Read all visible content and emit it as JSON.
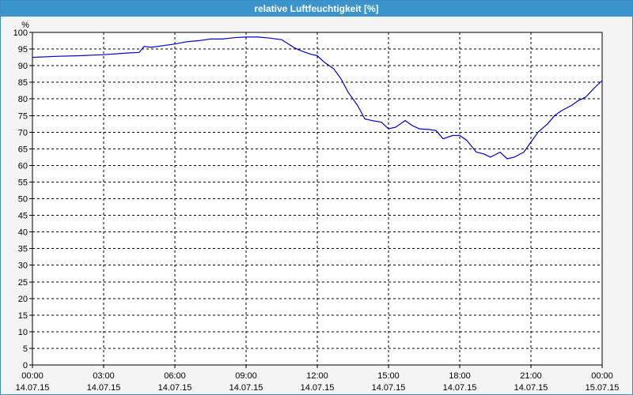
{
  "window": {
    "title": "relative Luftfeuchtigkeit [%]"
  },
  "chart_data": {
    "type": "line",
    "title": "relative Luftfeuchtigkeit [%]",
    "ylabel": "%",
    "ylim": [
      0,
      100
    ],
    "yticks": [
      0,
      5,
      10,
      15,
      20,
      25,
      30,
      35,
      40,
      45,
      50,
      55,
      60,
      65,
      70,
      75,
      80,
      85,
      90,
      95,
      100
    ],
    "xlim_hours": [
      0,
      24
    ],
    "xticks": [
      {
        "hour": 0,
        "time": "00:00",
        "date": "14.07.15"
      },
      {
        "hour": 3,
        "time": "03:00",
        "date": "14.07.15"
      },
      {
        "hour": 6,
        "time": "06:00",
        "date": "14.07.15"
      },
      {
        "hour": 9,
        "time": "09:00",
        "date": "14.07.15"
      },
      {
        "hour": 12,
        "time": "12:00",
        "date": "14.07.15"
      },
      {
        "hour": 15,
        "time": "15:00",
        "date": "14.07.15"
      },
      {
        "hour": 18,
        "time": "18:00",
        "date": "14.07.15"
      },
      {
        "hour": 21,
        "time": "21:00",
        "date": "14.07.15"
      },
      {
        "hour": 24,
        "time": "00:00",
        "date": "15.07.15"
      }
    ],
    "grid": true,
    "line_color": "#0000c8",
    "series": [
      {
        "x": [
          0,
          1,
          2,
          3,
          4,
          4.5,
          4.7,
          5,
          5.5,
          6,
          6.5,
          7,
          7.5,
          8,
          8.5,
          9,
          9.5,
          10,
          10.5,
          11,
          11.3,
          11.7,
          12,
          12.3,
          12.7,
          13,
          13.3,
          13.7,
          14,
          14.3,
          14.7,
          15,
          15.3,
          15.7,
          16,
          16.3,
          16.7,
          17,
          17.3,
          17.7,
          18,
          18.3,
          18.7,
          19,
          19.3,
          19.7,
          20,
          20.3,
          20.7,
          21,
          21.3,
          21.7,
          22,
          22.3,
          22.7,
          23,
          23.3,
          23.7,
          24
        ],
        "y": [
          92.5,
          92.8,
          93.0,
          93.3,
          93.8,
          94.0,
          95.8,
          95.5,
          96.0,
          96.5,
          97.2,
          97.5,
          98.0,
          98.0,
          98.4,
          98.6,
          98.6,
          98.3,
          97.8,
          95.5,
          94.5,
          93.5,
          93.0,
          91.0,
          89.0,
          86.0,
          82.0,
          78.0,
          74.0,
          73.5,
          73.0,
          71.0,
          71.5,
          73.5,
          72.0,
          71.0,
          70.8,
          70.5,
          68.0,
          69.0,
          69.0,
          67.5,
          64.0,
          63.5,
          62.5,
          64.0,
          62.0,
          62.5,
          64.0,
          67.0,
          70.0,
          72.5,
          75.0,
          76.5,
          78.0,
          79.5,
          80.5,
          83.5,
          85.5
        ]
      }
    ]
  }
}
